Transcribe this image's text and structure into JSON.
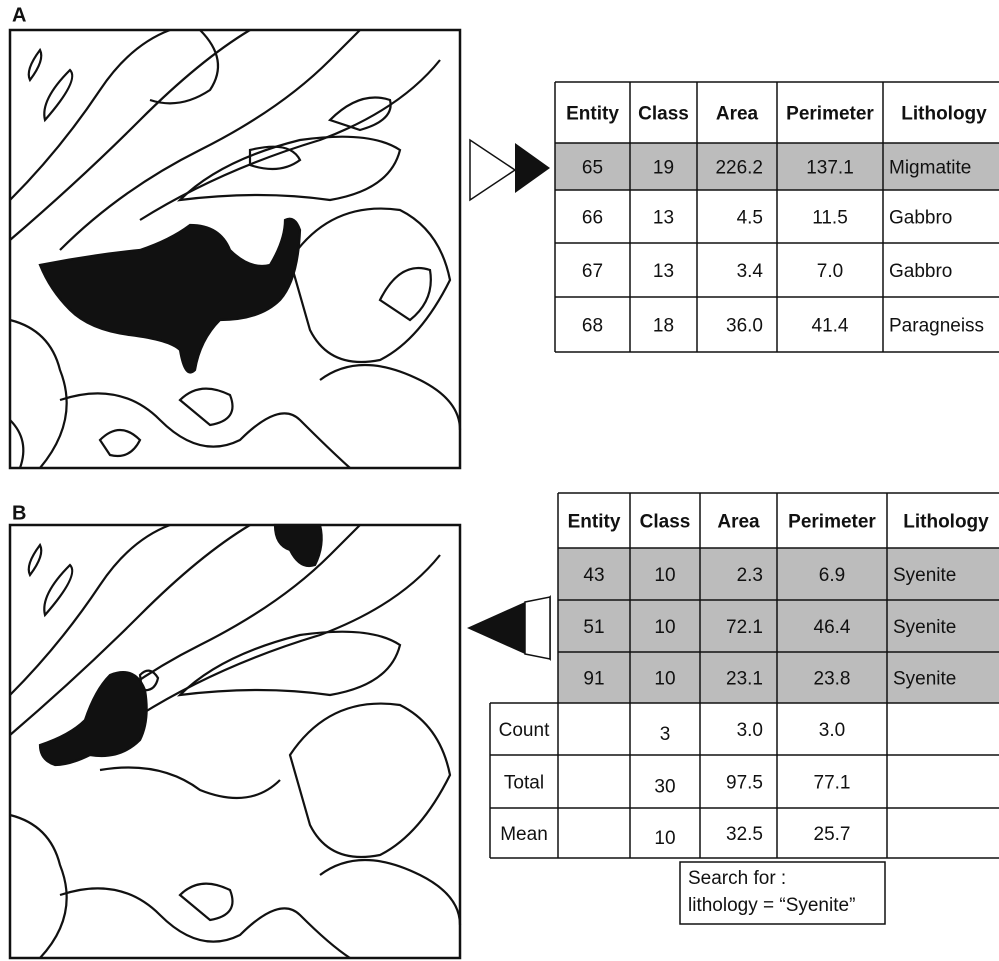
{
  "panel_a": {
    "label": "A",
    "table": {
      "header": [
        "Entity",
        "Class",
        "Area",
        "Perimeter",
        "Lithology"
      ],
      "rows": [
        [
          "65",
          "19",
          "226.2",
          "137.1",
          "Migmatite"
        ],
        [
          "66",
          "13",
          "4.5",
          "11.5",
          "Gabbro"
        ],
        [
          "67",
          "13",
          "3.4",
          "7.0",
          "Gabbro"
        ],
        [
          "68",
          "18",
          "36.0",
          "41.4",
          "Paragneiss"
        ]
      ]
    }
  },
  "panel_b": {
    "label": "B",
    "table": {
      "header": [
        "Entity",
        "Class",
        "Area",
        "Perimeter",
        "Lithology"
      ],
      "rows": [
        [
          "43",
          "10",
          "2.3",
          "6.9",
          "Syenite"
        ],
        [
          "51",
          "10",
          "72.1",
          "46.4",
          "Syenite"
        ],
        [
          "91",
          "10",
          "23.1",
          "23.8",
          "Syenite"
        ]
      ],
      "summary": [
        {
          "label": "Count",
          "class": "3",
          "area": "3.0",
          "perimeter": "3.0"
        },
        {
          "label": "Total",
          "class": "30",
          "area": "97.5",
          "perimeter": "77.1"
        },
        {
          "label": "Mean",
          "class": "10",
          "area": "32.5",
          "perimeter": "25.7"
        }
      ]
    },
    "search": [
      "Search for :",
      "lithology = “Syenite”"
    ]
  }
}
